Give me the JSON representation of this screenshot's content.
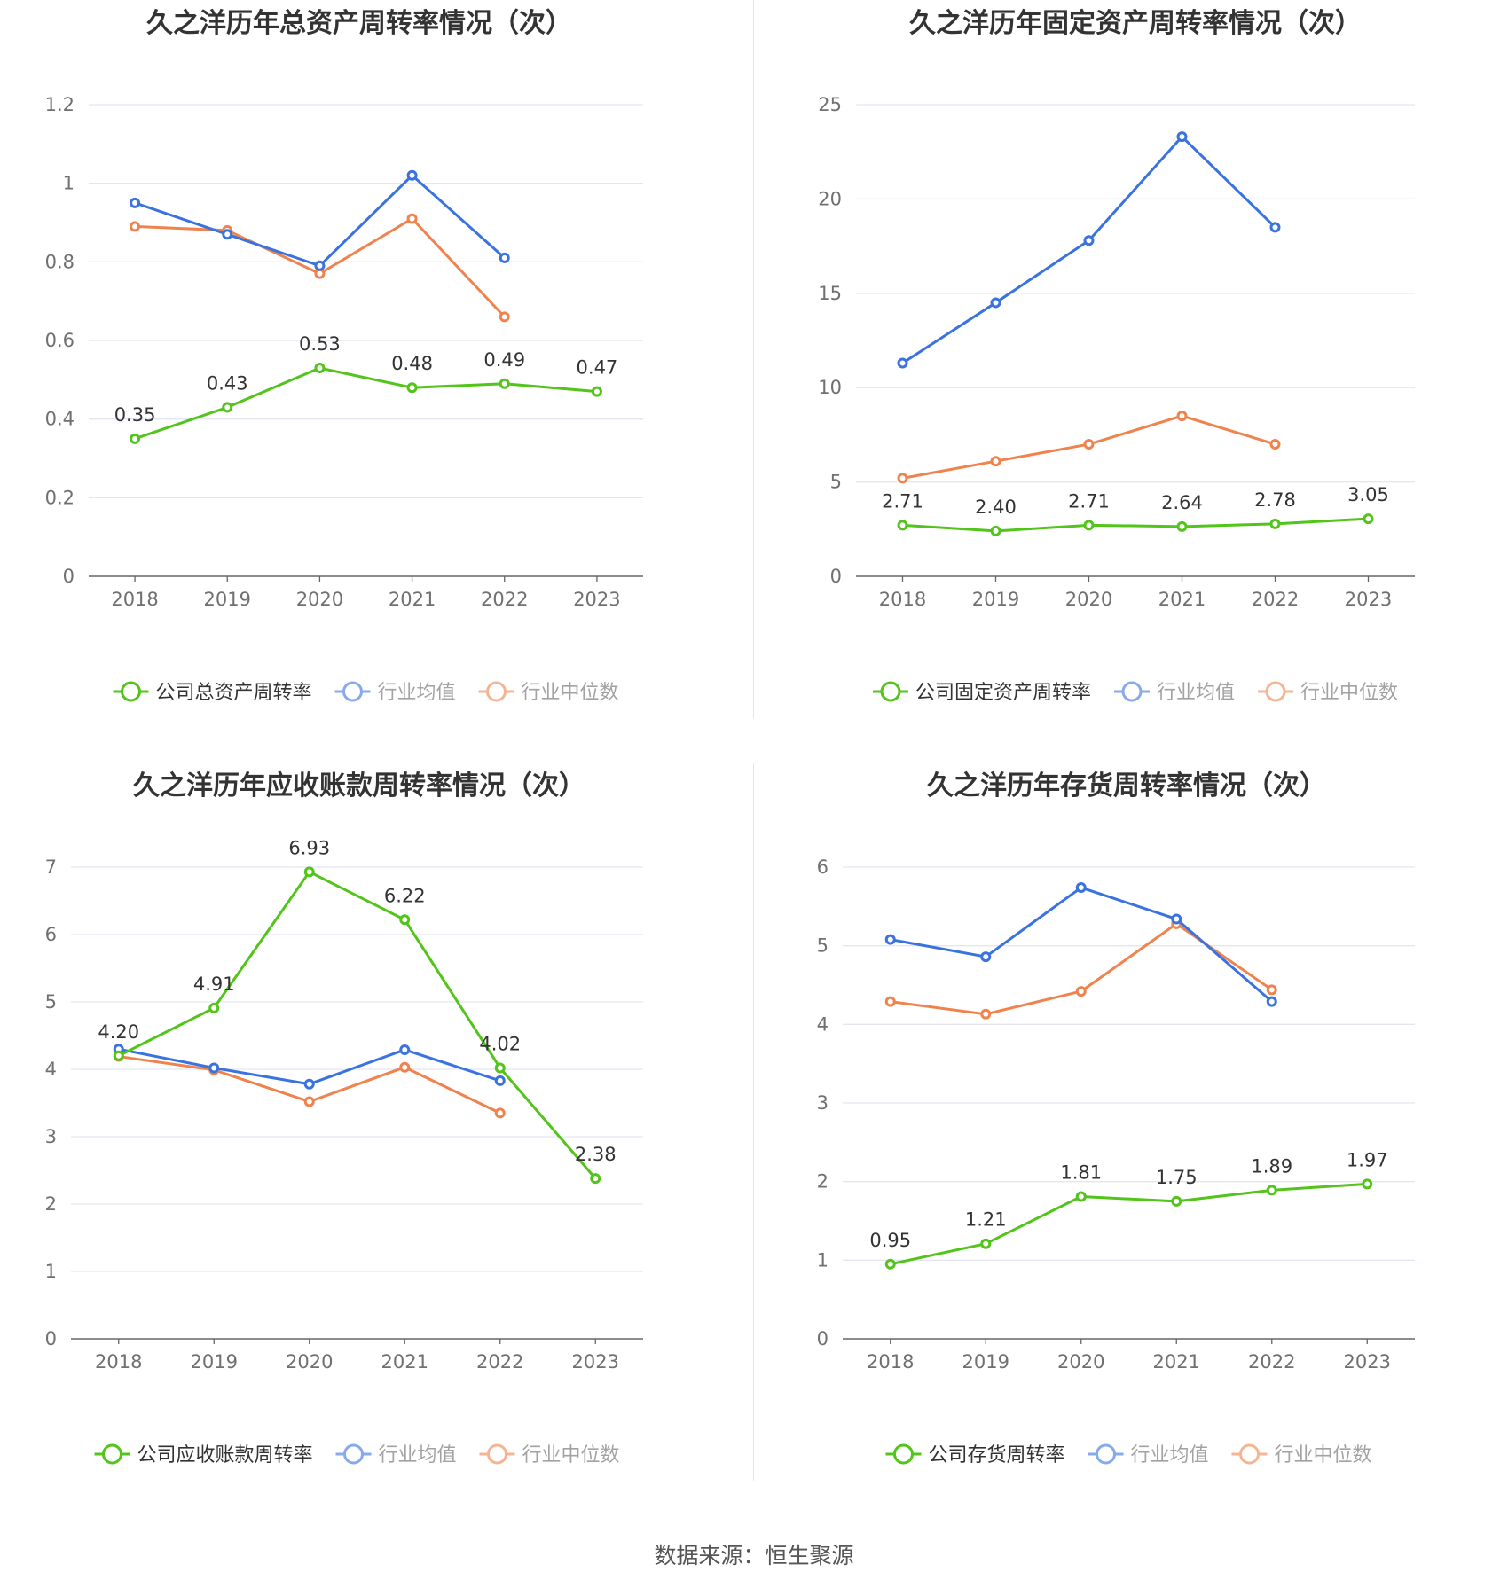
{
  "colors": {
    "company": "#52c41a",
    "avg": "#3a73e0",
    "median": "#f0834d",
    "grid": "#e3e6f2",
    "axis": "#666666"
  },
  "source": "数据来源：恒生聚源",
  "legend_labels": {
    "avg": "行业均值",
    "median": "行业中位数"
  },
  "chart_data": [
    {
      "type": "line",
      "title": "久之洋历年总资产周转率情况（次）",
      "categories": [
        "2018",
        "2019",
        "2020",
        "2021",
        "2022",
        "2023"
      ],
      "ylim": [
        0,
        1.2
      ],
      "yticks": [
        "0",
        "0.2",
        "0.4",
        "0.6",
        "0.8",
        "1",
        "1.2"
      ],
      "legend": "bottom",
      "grid": true,
      "series": [
        {
          "key": "company",
          "name": "公司总资产周转率",
          "values": [
            0.35,
            0.43,
            0.53,
            0.48,
            0.49,
            0.47
          ],
          "labels": [
            "0.35",
            "0.43",
            "0.53",
            "0.48",
            "0.49",
            "0.47"
          ]
        },
        {
          "key": "avg",
          "name": "行业均值",
          "values": [
            0.95,
            0.87,
            0.79,
            1.02,
            0.81,
            null
          ]
        },
        {
          "key": "median",
          "name": "行业中位数",
          "values": [
            0.89,
            0.88,
            0.77,
            0.91,
            0.66,
            null
          ]
        }
      ]
    },
    {
      "type": "line",
      "title": "久之洋历年固定资产周转率情况（次）",
      "categories": [
        "2018",
        "2019",
        "2020",
        "2021",
        "2022",
        "2023"
      ],
      "ylim": [
        0,
        25
      ],
      "yticks": [
        "0",
        "5",
        "10",
        "15",
        "20",
        "25"
      ],
      "legend": "bottom",
      "grid": true,
      "series": [
        {
          "key": "company",
          "name": "公司固定资产周转率",
          "values": [
            2.71,
            2.4,
            2.71,
            2.64,
            2.78,
            3.05
          ],
          "labels": [
            "2.71",
            "2.40",
            "2.71",
            "2.64",
            "2.78",
            "3.05"
          ]
        },
        {
          "key": "avg",
          "name": "行业均值",
          "values": [
            11.3,
            14.5,
            17.8,
            23.3,
            18.5,
            null
          ]
        },
        {
          "key": "median",
          "name": "行业中位数",
          "values": [
            5.2,
            6.1,
            7.0,
            8.5,
            7.0,
            null
          ]
        }
      ]
    },
    {
      "type": "line",
      "title": "久之洋历年应收账款周转率情况（次）",
      "categories": [
        "2018",
        "2019",
        "2020",
        "2021",
        "2022",
        "2023"
      ],
      "ylim": [
        0,
        7
      ],
      "yticks": [
        "0",
        "1",
        "2",
        "3",
        "4",
        "5",
        "6",
        "7"
      ],
      "legend": "bottom",
      "grid": true,
      "series": [
        {
          "key": "company",
          "name": "公司应收账款周转率",
          "values": [
            4.2,
            4.91,
            6.93,
            6.22,
            4.02,
            2.38
          ],
          "labels": [
            "4.20",
            "4.91",
            "6.93",
            "6.22",
            "4.02",
            "2.38"
          ]
        },
        {
          "key": "avg",
          "name": "行业均值",
          "values": [
            4.3,
            4.02,
            3.78,
            4.29,
            3.83,
            null
          ]
        },
        {
          "key": "median",
          "name": "行业中位数",
          "values": [
            4.19,
            3.99,
            3.52,
            4.03,
            3.35,
            null
          ]
        }
      ]
    },
    {
      "type": "line",
      "title": "久之洋历年存货周转率情况（次）",
      "categories": [
        "2018",
        "2019",
        "2020",
        "2021",
        "2022",
        "2023"
      ],
      "ylim": [
        0,
        6
      ],
      "yticks": [
        "0",
        "1",
        "2",
        "3",
        "4",
        "5",
        "6"
      ],
      "legend": "bottom",
      "grid": true,
      "series": [
        {
          "key": "company",
          "name": "公司存货周转率",
          "values": [
            0.95,
            1.21,
            1.81,
            1.75,
            1.89,
            1.97
          ],
          "labels": [
            "0.95",
            "1.21",
            "1.81",
            "1.75",
            "1.89",
            "1.97"
          ]
        },
        {
          "key": "avg",
          "name": "行业均值",
          "values": [
            5.08,
            4.86,
            5.74,
            5.34,
            4.29,
            null
          ]
        },
        {
          "key": "median",
          "name": "行业中位数",
          "values": [
            4.29,
            4.13,
            4.42,
            5.28,
            4.44,
            null
          ]
        }
      ]
    }
  ]
}
